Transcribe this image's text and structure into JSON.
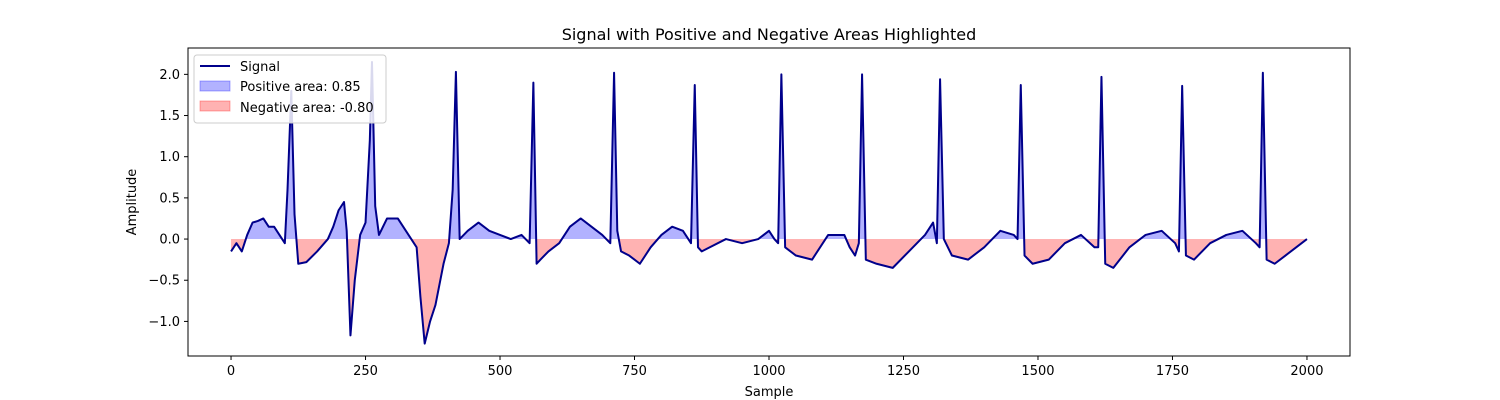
{
  "chart_data": {
    "type": "line",
    "title": "Signal with Positive and Negative Areas Highlighted",
    "xlabel": "Sample",
    "ylabel": "Amplitude",
    "xlim": [
      -80,
      2080
    ],
    "ylim": [
      -1.42,
      2.32
    ],
    "xticks": [
      0,
      250,
      500,
      750,
      1000,
      1250,
      1500,
      1750,
      2000
    ],
    "yticks": [
      -1.0,
      -0.5,
      0.0,
      0.5,
      1.0,
      1.5,
      2.0
    ],
    "xtick_labels": [
      "0",
      "250",
      "500",
      "750",
      "1000",
      "1250",
      "1500",
      "1750",
      "2000"
    ],
    "ytick_labels": [
      "−1.0",
      "−0.5",
      "0.0",
      "0.5",
      "1.0",
      "1.5",
      "2.0"
    ],
    "grid": false,
    "legend_position": "top-left",
    "colors": {
      "signal": "#00008b",
      "positive_fill": "#0000ff",
      "negative_fill": "#ff0000"
    },
    "series": [
      {
        "name": "Signal",
        "x": [
          0,
          10,
          20,
          30,
          40,
          50,
          60,
          70,
          80,
          90,
          100,
          105,
          112,
          118,
          125,
          140,
          160,
          180,
          190,
          200,
          210,
          215,
          222,
          230,
          240,
          250,
          258,
          262,
          268,
          275,
          290,
          310,
          330,
          345,
          352,
          360,
          370,
          380,
          395,
          405,
          412,
          418,
          425,
          440,
          460,
          480,
          500,
          520,
          540,
          555,
          562,
          568,
          575,
          590,
          610,
          630,
          650,
          670,
          690,
          705,
          712,
          718,
          725,
          740,
          760,
          780,
          800,
          820,
          840,
          855,
          862,
          868,
          875,
          890,
          920,
          950,
          980,
          1000,
          1010,
          1017,
          1023,
          1030,
          1050,
          1080,
          1110,
          1140,
          1150,
          1160,
          1167,
          1173,
          1180,
          1200,
          1230,
          1260,
          1290,
          1305,
          1312,
          1318,
          1325,
          1340,
          1370,
          1400,
          1430,
          1455,
          1462,
          1468,
          1475,
          1490,
          1520,
          1550,
          1580,
          1605,
          1612,
          1618,
          1625,
          1640,
          1670,
          1700,
          1730,
          1755,
          1762,
          1768,
          1775,
          1790,
          1820,
          1850,
          1880,
          1905,
          1912,
          1918,
          1925,
          1940,
          1960,
          1980,
          2000
        ],
        "values": [
          -0.15,
          -0.05,
          -0.15,
          0.05,
          0.2,
          0.22,
          0.25,
          0.15,
          0.15,
          0.05,
          -0.05,
          0.6,
          1.8,
          0.3,
          -0.3,
          -0.28,
          -0.15,
          0.0,
          0.15,
          0.35,
          0.45,
          0.1,
          -1.17,
          -0.5,
          0.05,
          0.2,
          1.2,
          2.15,
          0.4,
          0.05,
          0.25,
          0.25,
          0.05,
          -0.1,
          -0.7,
          -1.27,
          -1.0,
          -0.8,
          -0.3,
          -0.05,
          0.6,
          2.03,
          0.0,
          0.1,
          0.2,
          0.1,
          0.05,
          0.0,
          0.05,
          -0.05,
          1.9,
          -0.3,
          -0.25,
          -0.15,
          -0.05,
          0.15,
          0.25,
          0.15,
          0.05,
          -0.05,
          2.02,
          0.1,
          -0.15,
          -0.2,
          -0.3,
          -0.1,
          0.05,
          0.15,
          0.1,
          -0.05,
          1.87,
          -0.1,
          -0.15,
          -0.1,
          0.0,
          -0.05,
          0.0,
          0.1,
          0.0,
          -0.05,
          2.0,
          -0.1,
          -0.2,
          -0.25,
          0.05,
          0.05,
          -0.1,
          -0.2,
          -0.05,
          2.0,
          -0.25,
          -0.3,
          -0.35,
          -0.15,
          0.05,
          0.2,
          -0.05,
          1.94,
          0.0,
          -0.2,
          -0.25,
          -0.1,
          0.1,
          0.05,
          0.0,
          1.87,
          -0.2,
          -0.3,
          -0.25,
          -0.05,
          0.05,
          -0.1,
          -0.1,
          1.97,
          -0.3,
          -0.35,
          -0.1,
          0.05,
          0.1,
          -0.05,
          -0.15,
          1.86,
          -0.2,
          -0.25,
          -0.05,
          0.05,
          0.1,
          -0.05,
          -0.1,
          2.02,
          -0.25,
          -0.3,
          -0.2,
          -0.1,
          0.0
        ]
      }
    ],
    "legend": [
      {
        "label": "Signal",
        "kind": "line",
        "color": "#00008b"
      },
      {
        "label": "Positive area: 0.85",
        "kind": "patch",
        "color": "#0000ff"
      },
      {
        "label": "Negative area: -0.80",
        "kind": "patch",
        "color": "#ff0000"
      }
    ]
  }
}
